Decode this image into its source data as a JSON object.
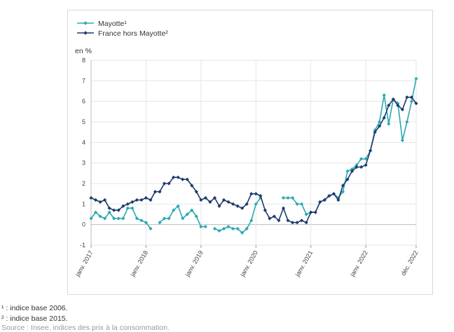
{
  "footnotes": [
    "¹ : indice base 2006.",
    "² : indice base 2015."
  ],
  "source": "Source : Insee, indices des prix à la consommation.",
  "chart_data": {
    "type": "line",
    "title": "",
    "xlabel": "",
    "ylabel": "en %",
    "ylim": [
      -1,
      8
    ],
    "yticks": [
      -1,
      0,
      1,
      2,
      3,
      4,
      5,
      6,
      7,
      8
    ],
    "x_tick_labels": [
      {
        "index": 0,
        "label": "janv. 2017"
      },
      {
        "index": 12,
        "label": "janv. 2018"
      },
      {
        "index": 24,
        "label": "janv. 2019"
      },
      {
        "index": 36,
        "label": "janv. 2020"
      },
      {
        "index": 48,
        "label": "janv. 2021"
      },
      {
        "index": 60,
        "label": "janv. 2022"
      },
      {
        "index": 71,
        "label": "déc. 2022"
      }
    ],
    "legend_position": "top-left",
    "series": [
      {
        "name": "Mayotte¹",
        "color": "#2aa9b0",
        "values": [
          0.3,
          0.6,
          0.4,
          0.3,
          0.6,
          0.3,
          0.3,
          0.3,
          0.8,
          0.8,
          0.3,
          0.2,
          0.1,
          -0.2,
          null,
          0.1,
          0.3,
          0.3,
          0.7,
          0.9,
          0.3,
          0.5,
          0.7,
          0.4,
          -0.1,
          -0.1,
          null,
          -0.2,
          -0.3,
          -0.2,
          -0.1,
          -0.2,
          -0.2,
          -0.4,
          -0.2,
          0.2,
          1.0,
          1.3,
          null,
          null,
          null,
          null,
          1.3,
          1.3,
          1.3,
          1.0,
          1.0,
          0.5,
          0.6,
          0.6,
          1.1,
          1.2,
          1.4,
          1.5,
          1.3,
          1.6,
          2.6,
          2.7,
          2.9,
          3.2,
          3.2,
          3.6,
          4.6,
          5.0,
          6.3,
          4.9,
          6.1,
          5.9,
          4.1,
          5.0,
          6.0,
          7.1
        ]
      },
      {
        "name": "France hors Mayotte²",
        "color": "#1f3a6e",
        "values": [
          1.3,
          1.2,
          1.1,
          1.2,
          0.8,
          0.7,
          0.7,
          0.9,
          1.0,
          1.1,
          1.2,
          1.2,
          1.3,
          1.2,
          1.6,
          1.6,
          2.0,
          2.0,
          2.3,
          2.3,
          2.2,
          2.2,
          1.9,
          1.6,
          1.2,
          1.3,
          1.1,
          1.3,
          0.9,
          1.2,
          1.1,
          1.0,
          0.9,
          0.8,
          1.0,
          1.5,
          1.5,
          1.4,
          0.7,
          0.3,
          0.4,
          0.2,
          0.8,
          0.2,
          0.1,
          0.1,
          0.2,
          0.1,
          0.6,
          0.6,
          1.1,
          1.2,
          1.4,
          1.5,
          1.2,
          1.9,
          2.2,
          2.6,
          2.8,
          2.8,
          2.9,
          3.6,
          4.5,
          4.8,
          5.2,
          5.8,
          6.1,
          5.8,
          5.6,
          6.2,
          6.2,
          5.9
        ]
      }
    ]
  }
}
